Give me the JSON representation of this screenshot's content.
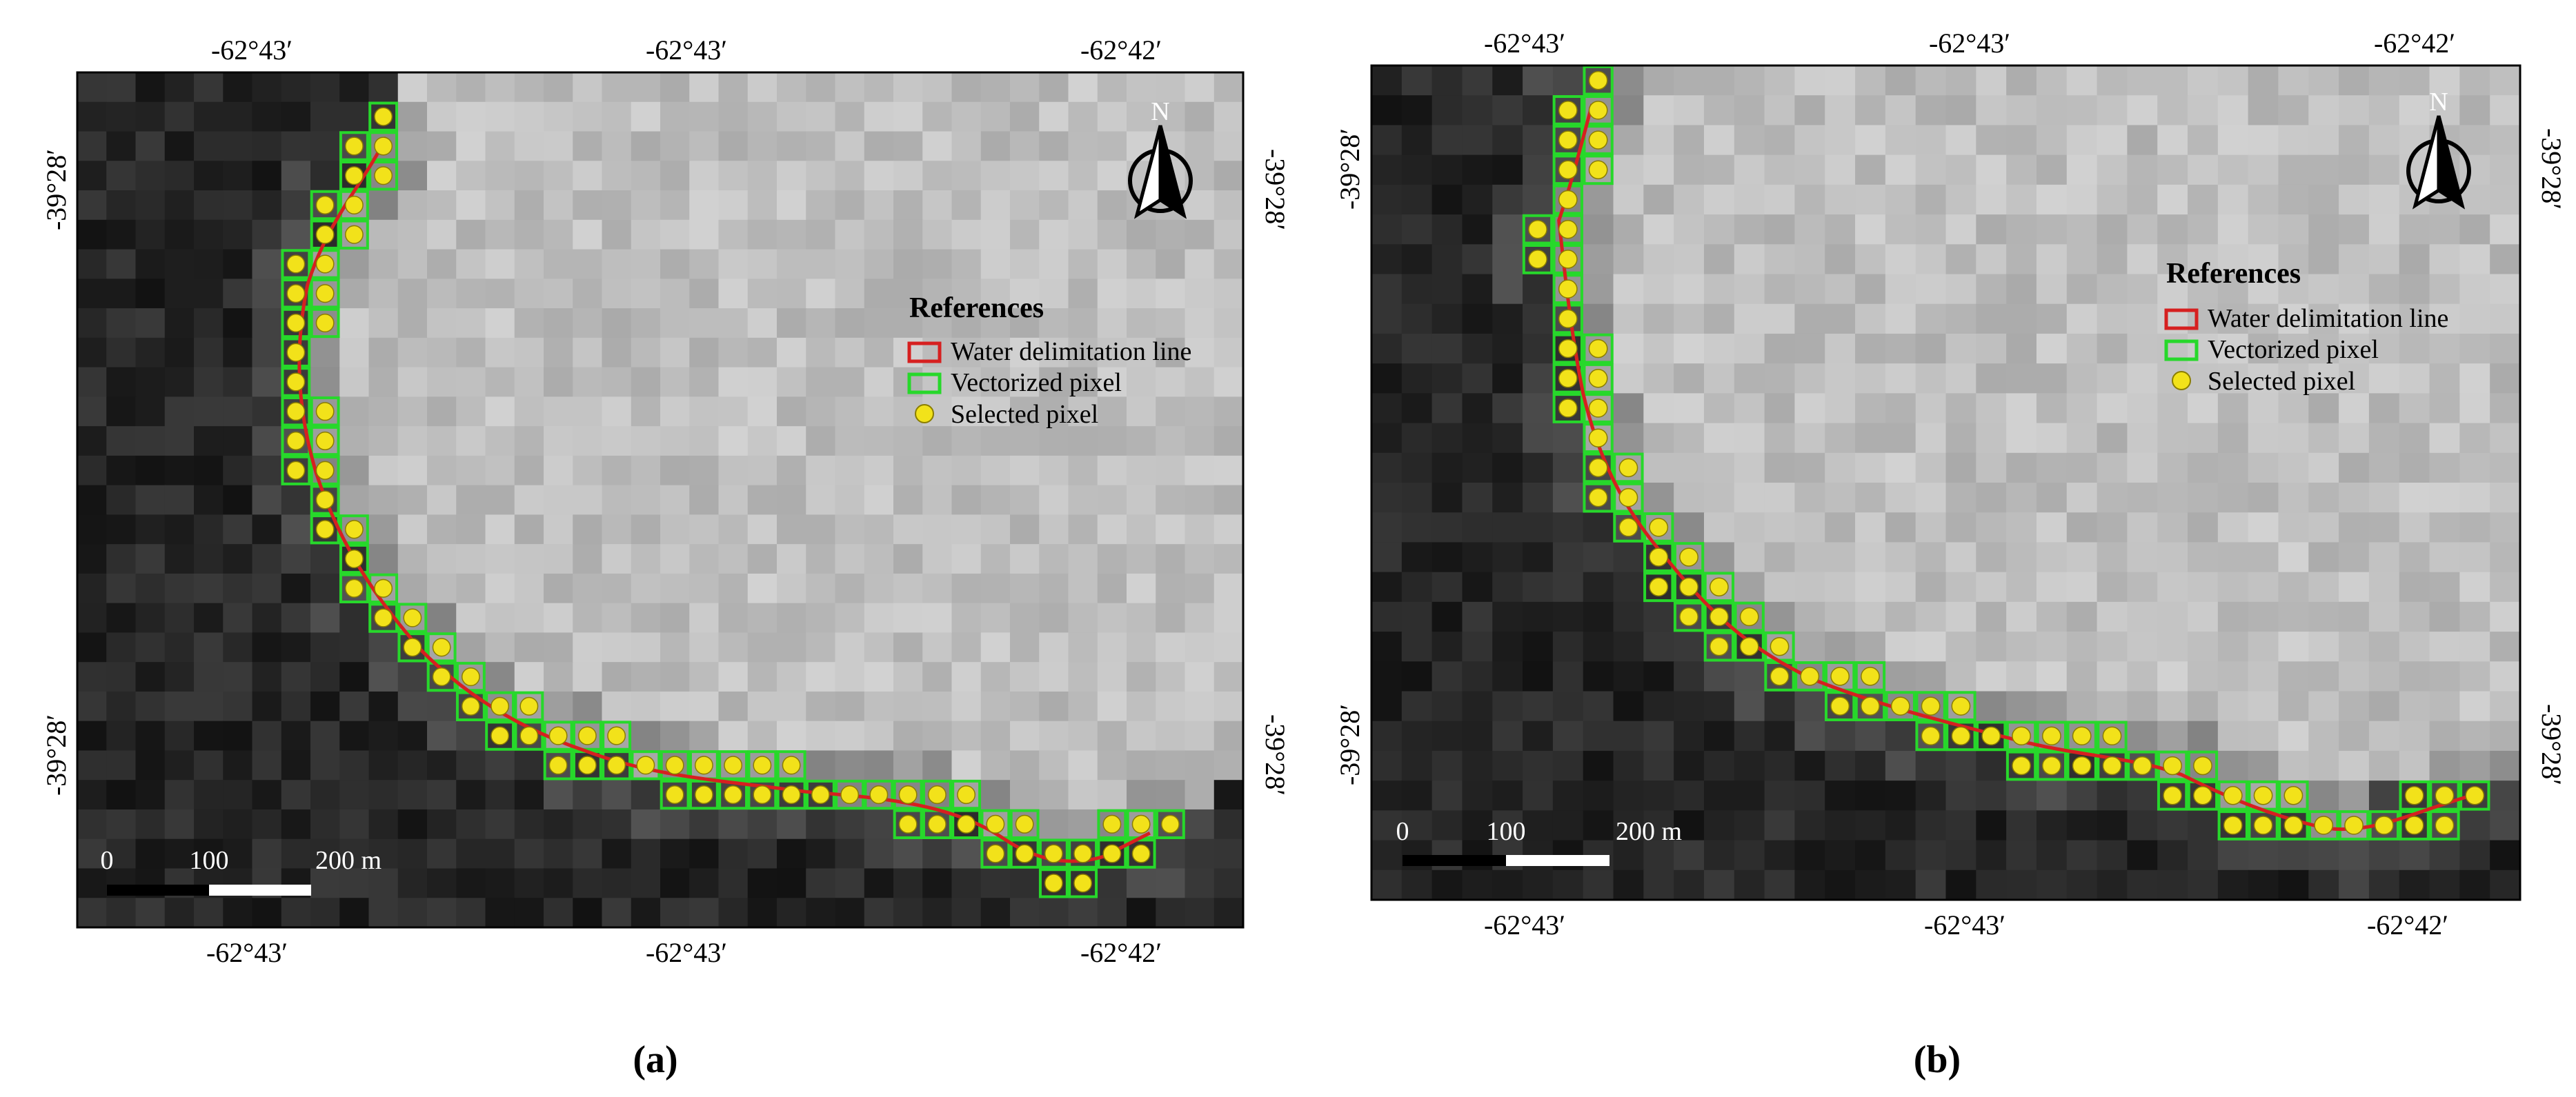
{
  "panels": [
    {
      "tag": "(a)",
      "grid": {
        "cols": 40,
        "rows": 29
      },
      "coords": {
        "top": [
          "-62°43′",
          "-62°43′",
          "-62°42′"
        ],
        "bottom": [
          "-62°43′",
          "-62°43′",
          "-62°42′"
        ],
        "left": [
          "-39°28′",
          "-39°28′"
        ],
        "right": [
          "-39°28′",
          "-39°28′"
        ]
      },
      "north_label": "N",
      "legend": {
        "title": "References",
        "items": [
          {
            "label": "Water delimitation line",
            "symbol": "red-rect"
          },
          {
            "label": "Vectorized pixel",
            "symbol": "green-rect"
          },
          {
            "label": "Selected pixel",
            "symbol": "yellow-dot"
          }
        ]
      },
      "scale_bar": {
        "labels": [
          "0",
          "100",
          "200 m"
        ]
      }
    },
    {
      "tag": "(b)",
      "grid": {
        "cols": 38,
        "rows": 28
      },
      "coords": {
        "top": [
          "-62°43′",
          "-62°43′",
          "-62°42′"
        ],
        "bottom": [
          "-62°43′",
          "-62°43′",
          "-62°42′"
        ],
        "left": [
          "-39°28′",
          "-39°28′"
        ],
        "right": [
          "-39°28′",
          "-39°28′"
        ]
      },
      "north_label": "N",
      "legend": {
        "title": "References",
        "items": [
          {
            "label": "Water delimitation line",
            "symbol": "red-rect"
          },
          {
            "label": "Vectorized pixel",
            "symbol": "green-rect"
          },
          {
            "label": "Selected pixel",
            "symbol": "yellow-dot"
          }
        ]
      },
      "scale_bar": {
        "labels": [
          "0",
          "100",
          "200 m"
        ]
      }
    }
  ],
  "colors": {
    "water_line": "#d62020",
    "vector_pixel": "#27d82b",
    "selected_pixel": "#f2e21a",
    "selected_pixel_stroke": "#8a7d00",
    "land_dark": "#161616",
    "water_light": "#bdbdbd"
  }
}
